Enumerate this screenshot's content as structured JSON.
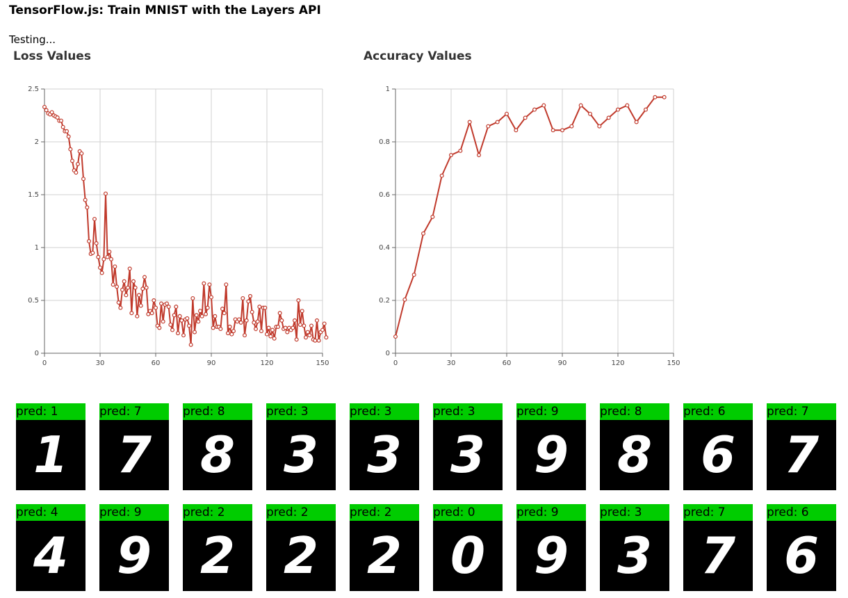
{
  "page": {
    "title": "TensorFlow.js: Train MNIST with the Layers API",
    "status": "Testing..."
  },
  "colors": {
    "line": "#c0392b",
    "pred_bg": "#00cc00",
    "digit_bg": "#000000"
  },
  "chart_data": [
    {
      "type": "line",
      "title": "Loss Values",
      "xlabel": "",
      "ylabel": "",
      "xlim": [
        0,
        150
      ],
      "ylim": [
        0,
        2.5
      ],
      "x_ticks": [
        "0",
        "30",
        "60",
        "90",
        "120",
        "150"
      ],
      "y_ticks": [
        "0",
        "0.5",
        "1",
        "1.5",
        "2",
        "2.5"
      ],
      "grid": true,
      "values": [
        2.33,
        2.3,
        2.27,
        2.26,
        2.28,
        2.25,
        2.24,
        2.23,
        2.2,
        2.2,
        2.14,
        2.1,
        2.1,
        2.05,
        1.93,
        1.82,
        1.73,
        1.71,
        1.79,
        1.91,
        1.89,
        1.65,
        1.45,
        1.38,
        1.06,
        0.94,
        0.95,
        1.27,
        1.04,
        0.91,
        0.81,
        0.76,
        0.89,
        1.51,
        0.91,
        0.96,
        0.89,
        0.65,
        0.82,
        0.63,
        0.48,
        0.43,
        0.6,
        0.68,
        0.55,
        0.62,
        0.8,
        0.38,
        0.68,
        0.62,
        0.35,
        0.55,
        0.45,
        0.61,
        0.72,
        0.62,
        0.37,
        0.4,
        0.38,
        0.5,
        0.43,
        0.26,
        0.24,
        0.47,
        0.3,
        0.46,
        0.47,
        0.44,
        0.27,
        0.22,
        0.36,
        0.44,
        0.19,
        0.35,
        0.31,
        0.17,
        0.32,
        0.33,
        0.26,
        0.08,
        0.52,
        0.2,
        0.36,
        0.3,
        0.4,
        0.35,
        0.66,
        0.37,
        0.43,
        0.65,
        0.53,
        0.24,
        0.35,
        0.25,
        0.25,
        0.23,
        0.42,
        0.38,
        0.65,
        0.19,
        0.25,
        0.18,
        0.21,
        0.32,
        0.3,
        0.32,
        0.29,
        0.52,
        0.17,
        0.31,
        0.49,
        0.54,
        0.39,
        0.29,
        0.23,
        0.3,
        0.44,
        0.21,
        0.43,
        0.43,
        0.18,
        0.24,
        0.16,
        0.22,
        0.14,
        0.25,
        0.25,
        0.38,
        0.31,
        0.23,
        0.24,
        0.2,
        0.24,
        0.22,
        0.24,
        0.31,
        0.13,
        0.5,
        0.27,
        0.4,
        0.26,
        0.15,
        0.2,
        0.17,
        0.26,
        0.13,
        0.12,
        0.31,
        0.12,
        0.2,
        0.22,
        0.28,
        0.15
      ]
    },
    {
      "type": "line",
      "title": "Accuracy Values",
      "xlabel": "",
      "ylabel": "",
      "xlim": [
        0,
        150
      ],
      "ylim": [
        0,
        1
      ],
      "x_ticks": [
        "0",
        "30",
        "60",
        "90",
        "120",
        "150"
      ],
      "y_ticks": [
        "0",
        "0.2",
        "0.4",
        "0.6",
        "0.8",
        "1"
      ],
      "grid": true,
      "x": [
        0,
        5,
        10,
        15,
        20,
        25,
        30,
        35,
        40,
        45,
        50,
        55,
        60,
        65,
        70,
        75,
        80,
        85,
        90,
        95,
        100,
        105,
        110,
        115,
        120,
        125,
        130,
        135,
        140,
        145
      ],
      "values": [
        0.063,
        0.203,
        0.297,
        0.453,
        0.516,
        0.672,
        0.75,
        0.766,
        0.875,
        0.75,
        0.859,
        0.875,
        0.906,
        0.844,
        0.891,
        0.922,
        0.938,
        0.844,
        0.844,
        0.859,
        0.938,
        0.906,
        0.859,
        0.891,
        0.922,
        0.938,
        0.875,
        0.922,
        0.969,
        0.969
      ]
    }
  ],
  "predictions": {
    "row1": [
      {
        "label": "pred: 1",
        "digit": "1"
      },
      {
        "label": "pred: 7",
        "digit": "7"
      },
      {
        "label": "pred: 8",
        "digit": "8"
      },
      {
        "label": "pred: 3",
        "digit": "3"
      },
      {
        "label": "pred: 3",
        "digit": "3"
      },
      {
        "label": "pred: 3",
        "digit": "3"
      },
      {
        "label": "pred: 9",
        "digit": "9"
      },
      {
        "label": "pred: 8",
        "digit": "8"
      },
      {
        "label": "pred: 6",
        "digit": "6"
      },
      {
        "label": "pred: 7",
        "digit": "7"
      }
    ],
    "row2": [
      {
        "label": "pred: 4",
        "digit": "4"
      },
      {
        "label": "pred: 9",
        "digit": "9"
      },
      {
        "label": "pred: 2",
        "digit": "2"
      },
      {
        "label": "pred: 2",
        "digit": "2"
      },
      {
        "label": "pred: 2",
        "digit": "2"
      },
      {
        "label": "pred: 0",
        "digit": "0"
      },
      {
        "label": "pred: 9",
        "digit": "9"
      },
      {
        "label": "pred: 3",
        "digit": "3"
      },
      {
        "label": "pred: 7",
        "digit": "7"
      },
      {
        "label": "pred: 6",
        "digit": "6"
      }
    ]
  }
}
